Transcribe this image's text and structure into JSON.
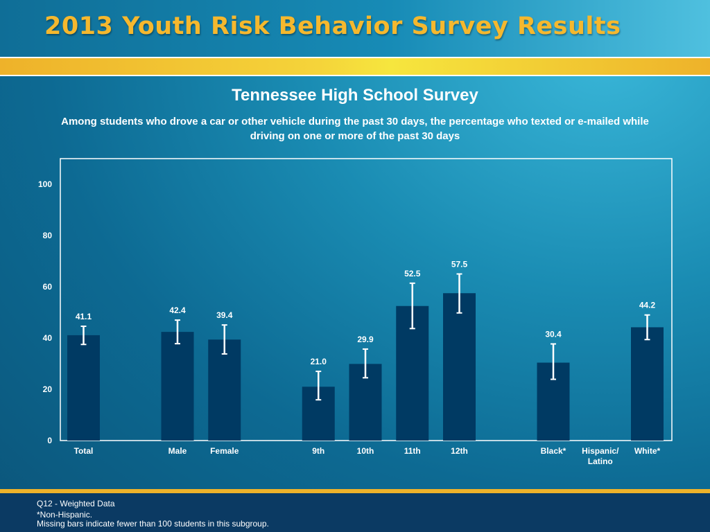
{
  "header": {
    "title": "2013 Youth Risk Behavior Survey Results"
  },
  "survey": {
    "title": "Tennessee High School Survey",
    "subtitle": "Among students who drove a car or other vehicle during the past 30 days, the percentage who texted or e-mailed while driving on one or more of the past 30 days"
  },
  "footer": {
    "line1": "Q12 - Weighted Data",
    "line2": "*Non-Hispanic.",
    "line3": "Missing bars indicate fewer than 100 students in this subgroup."
  },
  "colors": {
    "bar": "#003a63",
    "errorbar": "#ffffff",
    "frame": "#ffffff",
    "title_gold": "#f5b82e"
  },
  "chart_data": {
    "type": "bar",
    "categories": [
      "Total",
      "",
      "Male",
      "Female",
      "",
      "9th",
      "10th",
      "11th",
      "12th",
      "",
      "Black*",
      "Hispanic/\nLatino",
      "White*"
    ],
    "values": [
      41.1,
      null,
      42.4,
      39.4,
      null,
      21.0,
      29.9,
      52.5,
      57.5,
      null,
      30.4,
      null,
      44.2
    ],
    "value_labels": [
      "41.1",
      "",
      "42.4",
      "39.4",
      "",
      "21.0",
      "29.9",
      "52.5",
      "57.5",
      "",
      "30.4",
      "",
      "44.2"
    ],
    "ci_low": [
      37.5,
      null,
      37.8,
      33.8,
      null,
      15.9,
      24.5,
      43.7,
      49.8,
      null,
      23.9,
      null,
      39.4
    ],
    "ci_high": [
      44.6,
      null,
      47.0,
      45.1,
      null,
      27.0,
      35.7,
      61.4,
      65.0,
      null,
      37.7,
      null,
      49.0
    ],
    "yticks": [
      0,
      20,
      40,
      60,
      80,
      100
    ],
    "ylim": [
      0,
      110
    ],
    "grid": false,
    "xlabel": "",
    "ylabel": ""
  }
}
